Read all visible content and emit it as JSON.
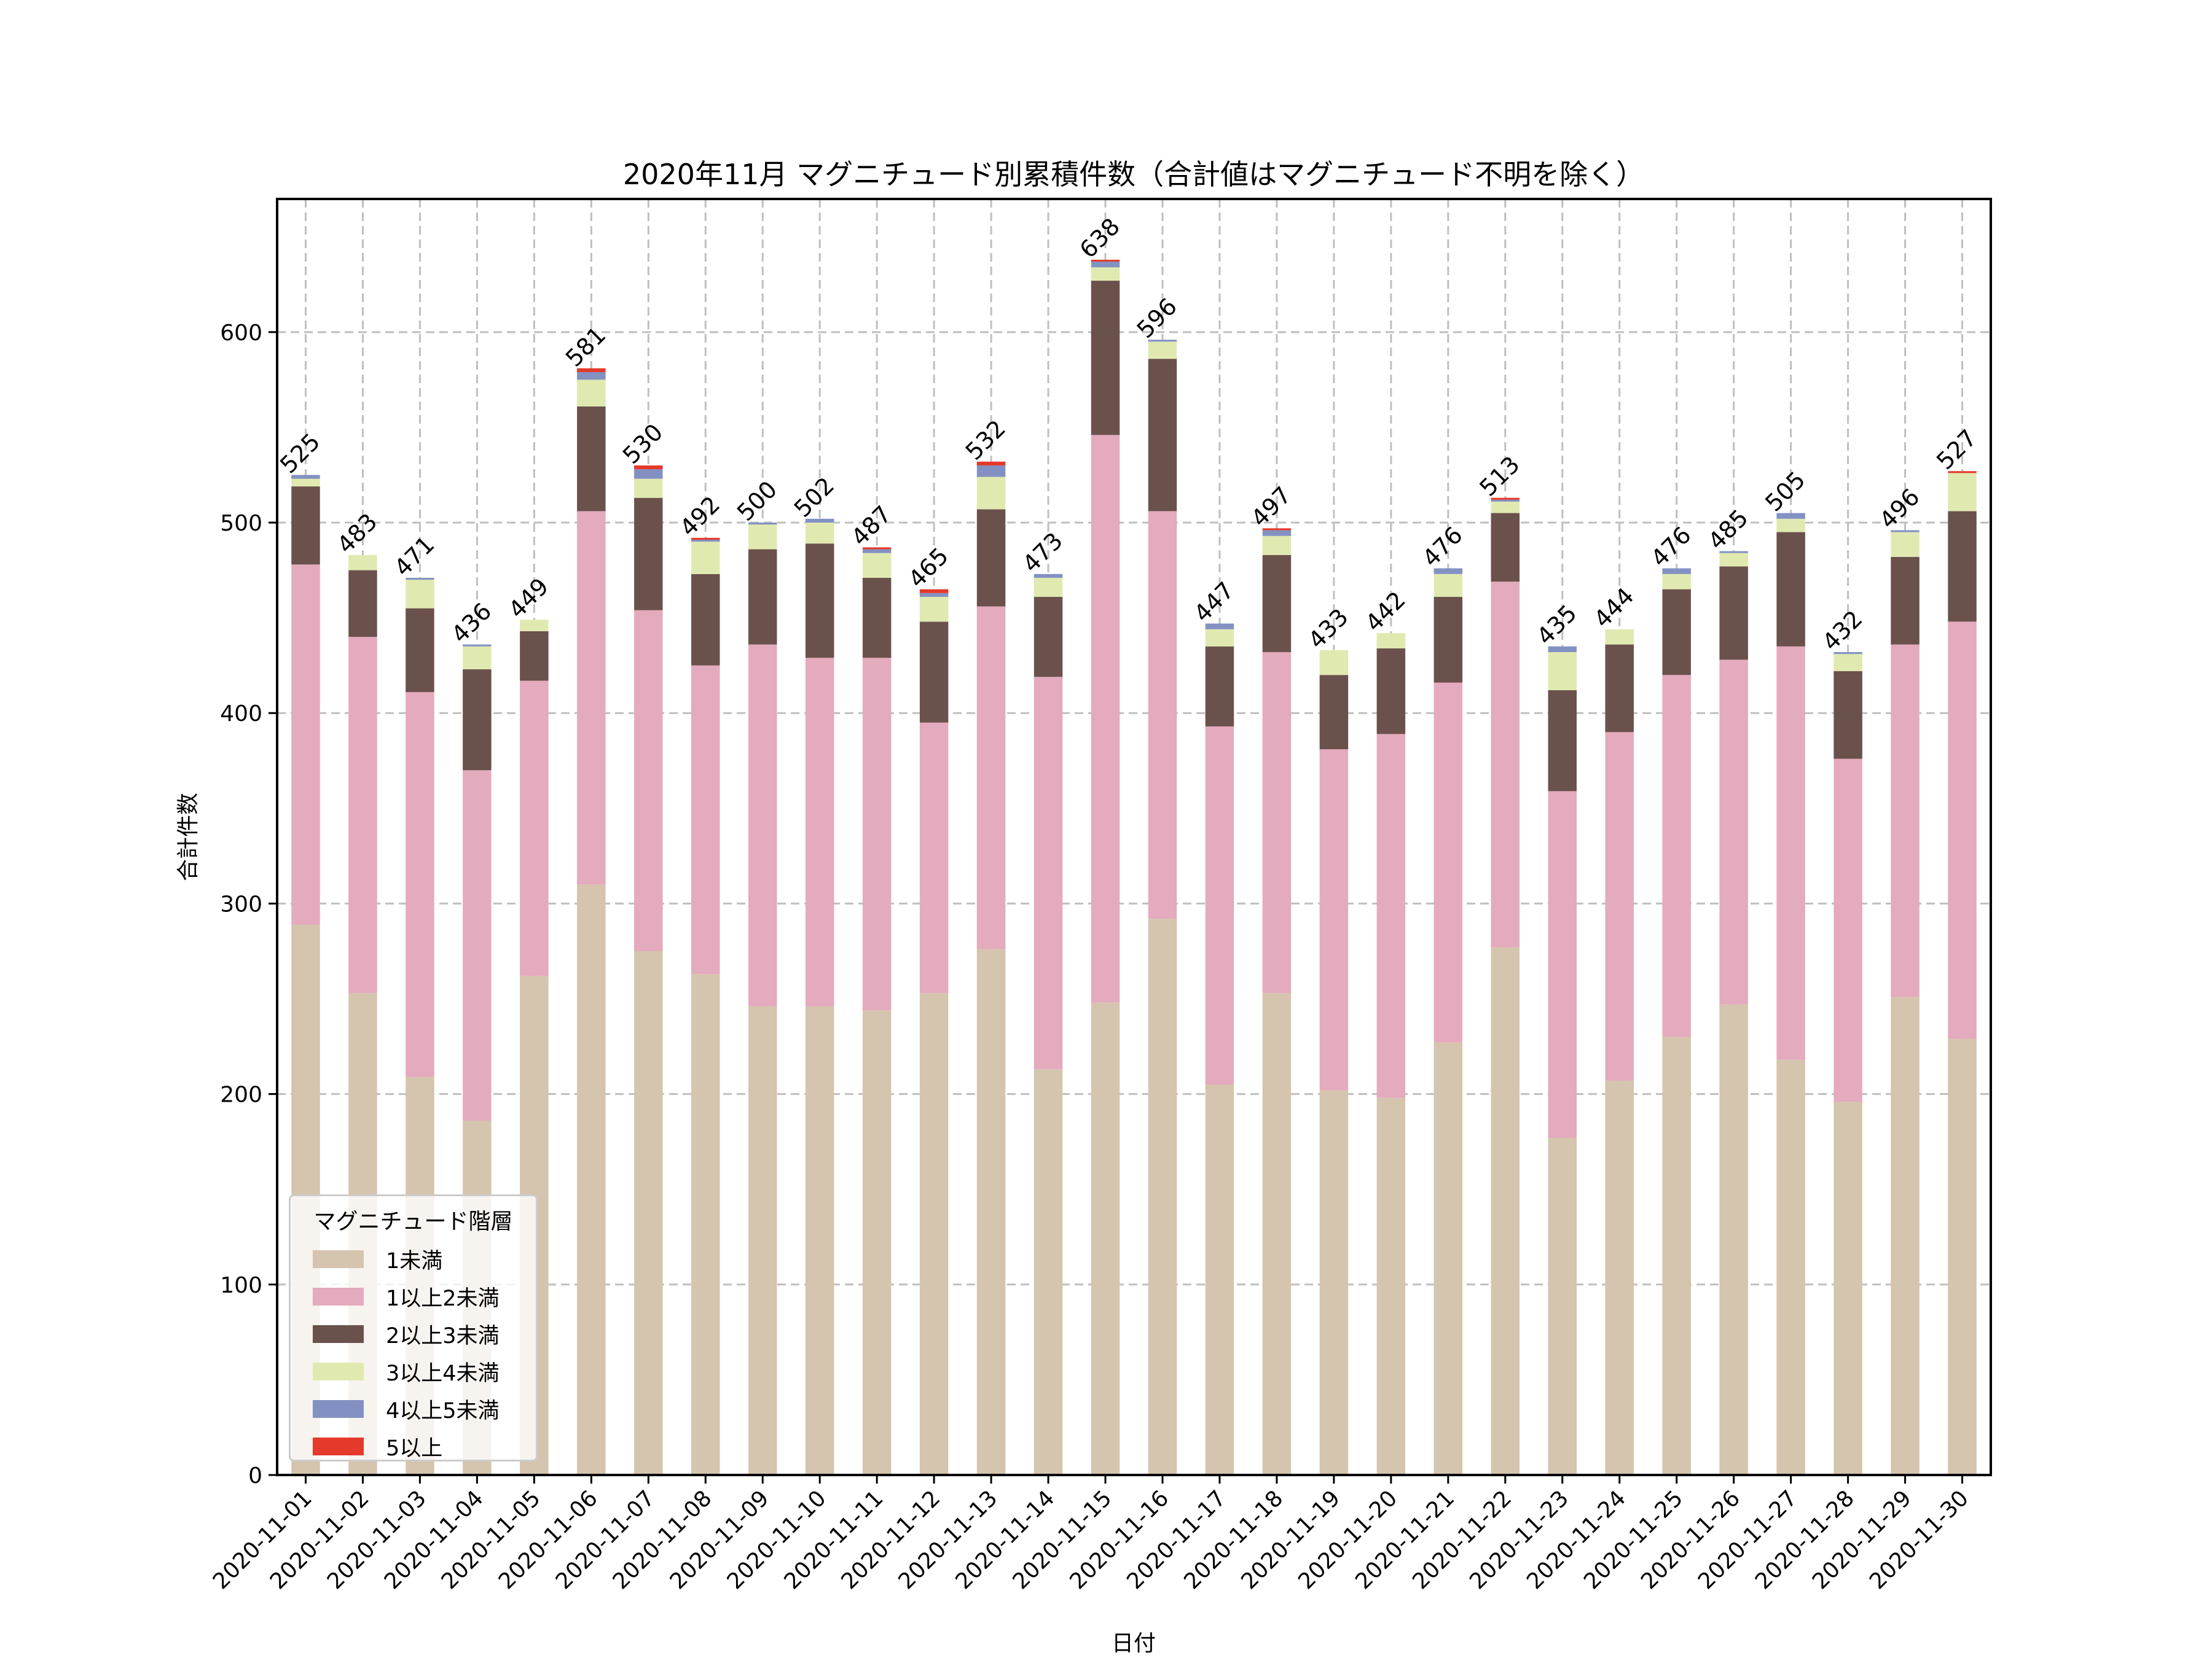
{
  "chart_data": {
    "type": "bar",
    "stacked": true,
    "title": "2020年11月 マグニチュード別累積件数（合計値はマグニチュード不明を除く）",
    "xlabel": "日付",
    "ylabel": "合計件数",
    "ylim": [
      0,
      669.9
    ],
    "yticks": [
      0,
      100,
      200,
      300,
      400,
      500,
      600
    ],
    "grid": true,
    "legend": {
      "title": "マグニチュード階層",
      "placement": "lower-left"
    },
    "categories": [
      "2020-11-01",
      "2020-11-02",
      "2020-11-03",
      "2020-11-04",
      "2020-11-05",
      "2020-11-06",
      "2020-11-07",
      "2020-11-08",
      "2020-11-09",
      "2020-11-10",
      "2020-11-11",
      "2020-11-12",
      "2020-11-13",
      "2020-11-14",
      "2020-11-15",
      "2020-11-16",
      "2020-11-17",
      "2020-11-18",
      "2020-11-19",
      "2020-11-20",
      "2020-11-21",
      "2020-11-22",
      "2020-11-23",
      "2020-11-24",
      "2020-11-25",
      "2020-11-26",
      "2020-11-27",
      "2020-11-28",
      "2020-11-29",
      "2020-11-30"
    ],
    "series": [
      {
        "name": "1未満",
        "color": "#d5c4ae",
        "values": [
          289,
          253,
          209,
          186,
          262,
          310,
          275,
          263,
          246,
          246,
          244,
          253,
          276,
          213,
          248,
          292,
          205,
          253,
          202,
          198,
          227,
          277,
          177,
          207,
          230,
          247,
          218,
          196,
          251,
          229
        ]
      },
      {
        "name": "1以上2未満",
        "color": "#e4aabd",
        "values": [
          189,
          187,
          202,
          184,
          155,
          196,
          179,
          162,
          190,
          183,
          185,
          142,
          180,
          206,
          298,
          214,
          188,
          179,
          179,
          191,
          189,
          192,
          182,
          183,
          190,
          181,
          217,
          180,
          185,
          219
        ]
      },
      {
        "name": "2以上3未満",
        "color": "#6b514c",
        "values": [
          41,
          35,
          44,
          53,
          26,
          55,
          59,
          48,
          50,
          60,
          42,
          53,
          51,
          42,
          81,
          80,
          42,
          51,
          39,
          45,
          45,
          36,
          53,
          46,
          45,
          49,
          60,
          46,
          46,
          58
        ]
      },
      {
        "name": "3以上4未満",
        "color": "#e0eab0",
        "values": [
          4,
          8,
          15,
          12,
          6,
          14,
          10,
          17,
          13,
          11,
          13,
          13,
          17,
          10,
          7,
          9,
          9,
          10,
          13,
          8,
          12,
          6,
          20,
          8,
          8,
          7,
          7,
          9,
          13,
          20
        ]
      },
      {
        "name": "4以上5未満",
        "color": "#8391c2",
        "values": [
          2,
          0,
          1,
          1,
          0,
          4,
          5,
          1,
          1,
          2,
          2,
          2,
          6,
          2,
          3,
          1,
          3,
          3,
          0,
          0,
          3,
          1,
          3,
          0,
          3,
          1,
          3,
          1,
          1,
          0
        ]
      },
      {
        "name": "5以上",
        "color": "#e4392b",
        "values": [
          0,
          0,
          0,
          0,
          0,
          2,
          2,
          1,
          0,
          0,
          1,
          2,
          2,
          0,
          1,
          0,
          0,
          1,
          0,
          0,
          0,
          1,
          0,
          0,
          0,
          0,
          0,
          0,
          0,
          1
        ]
      }
    ],
    "totals": [
      525,
      483,
      471,
      436,
      449,
      581,
      530,
      492,
      500,
      502,
      487,
      465,
      532,
      473,
      638,
      596,
      447,
      497,
      433,
      442,
      476,
      513,
      435,
      444,
      476,
      485,
      505,
      432,
      496,
      527
    ]
  }
}
